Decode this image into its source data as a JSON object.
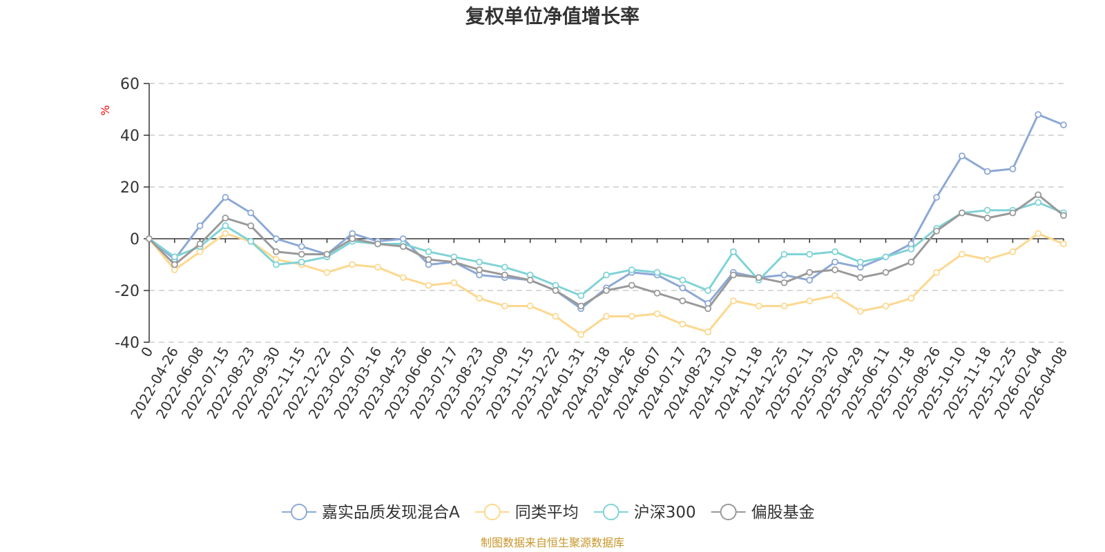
{
  "chart_data": {
    "type": "line",
    "title": "复权单位净值增长率",
    "ylabel": "%",
    "xlabel": "",
    "ylim": [
      -40,
      60
    ],
    "yticks": [
      60,
      40,
      20,
      0,
      -20,
      -40
    ],
    "grid": true,
    "legend_position": "bottom-center",
    "categories": [
      "0",
      "2022-04-26",
      "2022-06-08",
      "2022-07-15",
      "2022-08-23",
      "2022-09-30",
      "2022-11-15",
      "2022-12-22",
      "2023-02-07",
      "2023-03-16",
      "2023-04-25",
      "2023-06-06",
      "2023-07-17",
      "2023-08-23",
      "2023-10-09",
      "2023-11-15",
      "2023-12-22",
      "2024-01-31",
      "2024-03-18",
      "2024-04-26",
      "2024-06-07",
      "2024-07-17",
      "2024-08-23",
      "2024-10-10",
      "2024-11-18",
      "2024-12-25",
      "2025-02-11",
      "2025-03-20",
      "2025-04-29",
      "2025-06-11",
      "2025-07-18",
      "2025-08-26",
      "2025-10-10",
      "2025-11-18",
      "2025-12-25",
      "2026-02-04",
      "2026-04-08"
    ],
    "series": [
      {
        "name": "嘉实品质发现混合A",
        "color": "#8ca8d6",
        "values": [
          0,
          -8,
          5,
          16,
          10,
          0,
          -3,
          -6,
          2,
          -1,
          0,
          -10,
          -9,
          -14,
          -15,
          -16,
          -20,
          -27,
          -19,
          -13,
          -14,
          -19,
          -25,
          -13,
          -15,
          -14,
          -16,
          -9,
          -11,
          -7,
          -2,
          16,
          32,
          26,
          27,
          48,
          44
        ]
      },
      {
        "name": "同类平均",
        "color": "#fcd88e",
        "values": [
          0,
          -12,
          -5,
          2,
          -1,
          -8,
          -10,
          -13,
          -10,
          -11,
          -15,
          -18,
          -17,
          -23,
          -26,
          -26,
          -30,
          -37,
          -30,
          -30,
          -29,
          -33,
          -36,
          -24,
          -26,
          -26,
          -24,
          -22,
          -28,
          -26,
          -23,
          -13,
          -6,
          -8,
          -5,
          2,
          -2
        ]
      },
      {
        "name": "沪深300",
        "color": "#7fd3d6",
        "values": [
          0,
          -7,
          -3,
          5,
          -1,
          -10,
          -9,
          -7,
          -1,
          -2,
          -2,
          -5,
          -7,
          -9,
          -11,
          -14,
          -18,
          -22,
          -14,
          -12,
          -13,
          -16,
          -20,
          -5,
          -16,
          -6,
          -6,
          -5,
          -9,
          -7,
          -4,
          4,
          10,
          11,
          11,
          14,
          10
        ]
      },
      {
        "name": "偏股基金",
        "color": "#999999",
        "values": [
          0,
          -10,
          -2,
          8,
          5,
          -5,
          -6,
          -6,
          0,
          -2,
          -3,
          -8,
          -9,
          -12,
          -14,
          -16,
          -20,
          -26,
          -20,
          -18,
          -21,
          -24,
          -27,
          -14,
          -15,
          -17,
          -13,
          -12,
          -15,
          -13,
          -9,
          3,
          10,
          8,
          10,
          17,
          9
        ]
      }
    ]
  },
  "footer": {
    "source": "制图数据来自恒生聚源数据库"
  }
}
